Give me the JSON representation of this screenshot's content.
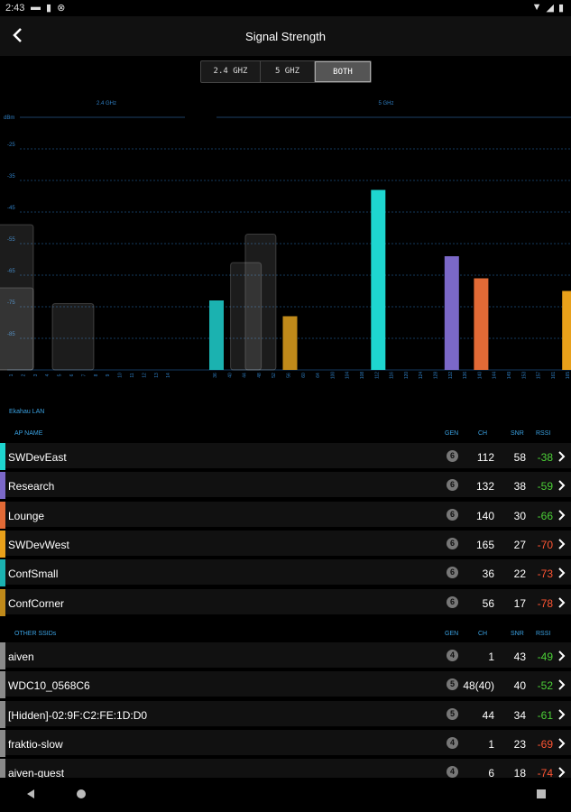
{
  "status": {
    "time": "2:43"
  },
  "appbar": {
    "title": "Signal Strength"
  },
  "bands": {
    "options": [
      "2.4 GHZ",
      "5 GHZ",
      "BOTH"
    ],
    "selected": "BOTH"
  },
  "chart_data": {
    "type": "bar",
    "sections": [
      "2.4 GHz",
      "5 GHz"
    ],
    "ylabel": "dBm",
    "y_ticks": [
      "-25",
      "-35",
      "-45",
      "-55",
      "-65",
      "-75",
      "-85"
    ],
    "ylim": [
      -95,
      -15
    ],
    "x_ticks_24": [
      "1",
      "2",
      "3",
      "4",
      "5",
      "6",
      "7",
      "8",
      "9",
      "10",
      "11",
      "12",
      "13",
      "14"
    ],
    "x_ticks_5": [
      "36",
      "40",
      "44",
      "48",
      "52",
      "56",
      "60",
      "64",
      "100",
      "104",
      "108",
      "112",
      "116",
      "120",
      "124",
      "128",
      "132",
      "136",
      "140",
      "144",
      "149",
      "153",
      "157",
      "161",
      "165"
    ],
    "series": [
      {
        "name": "SWDevEast",
        "channel": "112",
        "rssi": -38,
        "color": "#1ed6d0"
      },
      {
        "name": "Research",
        "channel": "132",
        "rssi": -59,
        "color": "#7b68c8"
      },
      {
        "name": "Lounge",
        "channel": "140",
        "rssi": -66,
        "color": "#e26a36"
      },
      {
        "name": "SWDevWest",
        "channel": "165",
        "rssi": -70,
        "color": "#e8a01a"
      },
      {
        "name": "ConfSmall",
        "channel": "36",
        "rssi": -73,
        "color": "#1bb2b0"
      },
      {
        "name": "ConfCorner",
        "channel": "56",
        "rssi": -78,
        "color": "#c08a1a"
      }
    ],
    "other": [
      {
        "name": "aiven",
        "channel": "1",
        "rssi": -49
      },
      {
        "name": "WDC10_0568C6",
        "channel": "48(40)",
        "rssi": -52
      },
      {
        "name": "[Hidden]-02:9F:C2:FE:1D:D0",
        "channel": "44",
        "rssi": -61
      },
      {
        "name": "fraktio-slow",
        "channel": "1",
        "rssi": -69
      },
      {
        "name": "aiven-guest",
        "channel": "6",
        "rssi": -74
      }
    ]
  },
  "lists": {
    "group1_title": "Ekahau LAN",
    "group1_header": {
      "name": "AP NAME",
      "gen": "GEN",
      "ch": "CH",
      "snr": "SNR",
      "rssi": "RSSI"
    },
    "group1": [
      {
        "name": "SWDevEast",
        "gen": "6",
        "ch": "112",
        "snr": "58",
        "rssi": "-38",
        "rssi_color": "#4cd137",
        "color": "#1ed6d0"
      },
      {
        "name": "Research",
        "gen": "6",
        "ch": "132",
        "snr": "38",
        "rssi": "-59",
        "rssi_color": "#4cd137",
        "color": "#7b68c8"
      },
      {
        "name": "Lounge",
        "gen": "6",
        "ch": "140",
        "snr": "30",
        "rssi": "-66",
        "rssi_color": "#4cd137",
        "color": "#e26a36"
      },
      {
        "name": "SWDevWest",
        "gen": "6",
        "ch": "165",
        "snr": "27",
        "rssi": "-70",
        "rssi_color": "#ff5533",
        "color": "#e8a01a"
      },
      {
        "name": "ConfSmall",
        "gen": "6",
        "ch": "36",
        "snr": "22",
        "rssi": "-73",
        "rssi_color": "#ff5533",
        "color": "#1bb2b0"
      },
      {
        "name": "ConfCorner",
        "gen": "6",
        "ch": "56",
        "snr": "17",
        "rssi": "-78",
        "rssi_color": "#ff5533",
        "color": "#c08a1a"
      }
    ],
    "group2_header": {
      "name": "OTHER SSIDs",
      "gen": "GEN",
      "ch": "CH",
      "snr": "SNR",
      "rssi": "RSSI"
    },
    "group2": [
      {
        "name": "aiven",
        "gen": "4",
        "ch": "1",
        "snr": "43",
        "rssi": "-49",
        "rssi_color": "#4cd137",
        "color": "#8a8a8a"
      },
      {
        "name": "WDC10_0568C6",
        "gen": "5",
        "ch": "48(40)",
        "snr": "40",
        "rssi": "-52",
        "rssi_color": "#4cd137",
        "color": "#8a8a8a"
      },
      {
        "name": "[Hidden]-02:9F:C2:FE:1D:D0",
        "gen": "5",
        "ch": "44",
        "snr": "34",
        "rssi": "-61",
        "rssi_color": "#4cd137",
        "color": "#8a8a8a"
      },
      {
        "name": "fraktio-slow",
        "gen": "4",
        "ch": "1",
        "snr": "23",
        "rssi": "-69",
        "rssi_color": "#ff5533",
        "color": "#8a8a8a"
      },
      {
        "name": "aiven-guest",
        "gen": "4",
        "ch": "6",
        "snr": "18",
        "rssi": "-74",
        "rssi_color": "#ff5533",
        "color": "#8a8a8a"
      }
    ]
  }
}
